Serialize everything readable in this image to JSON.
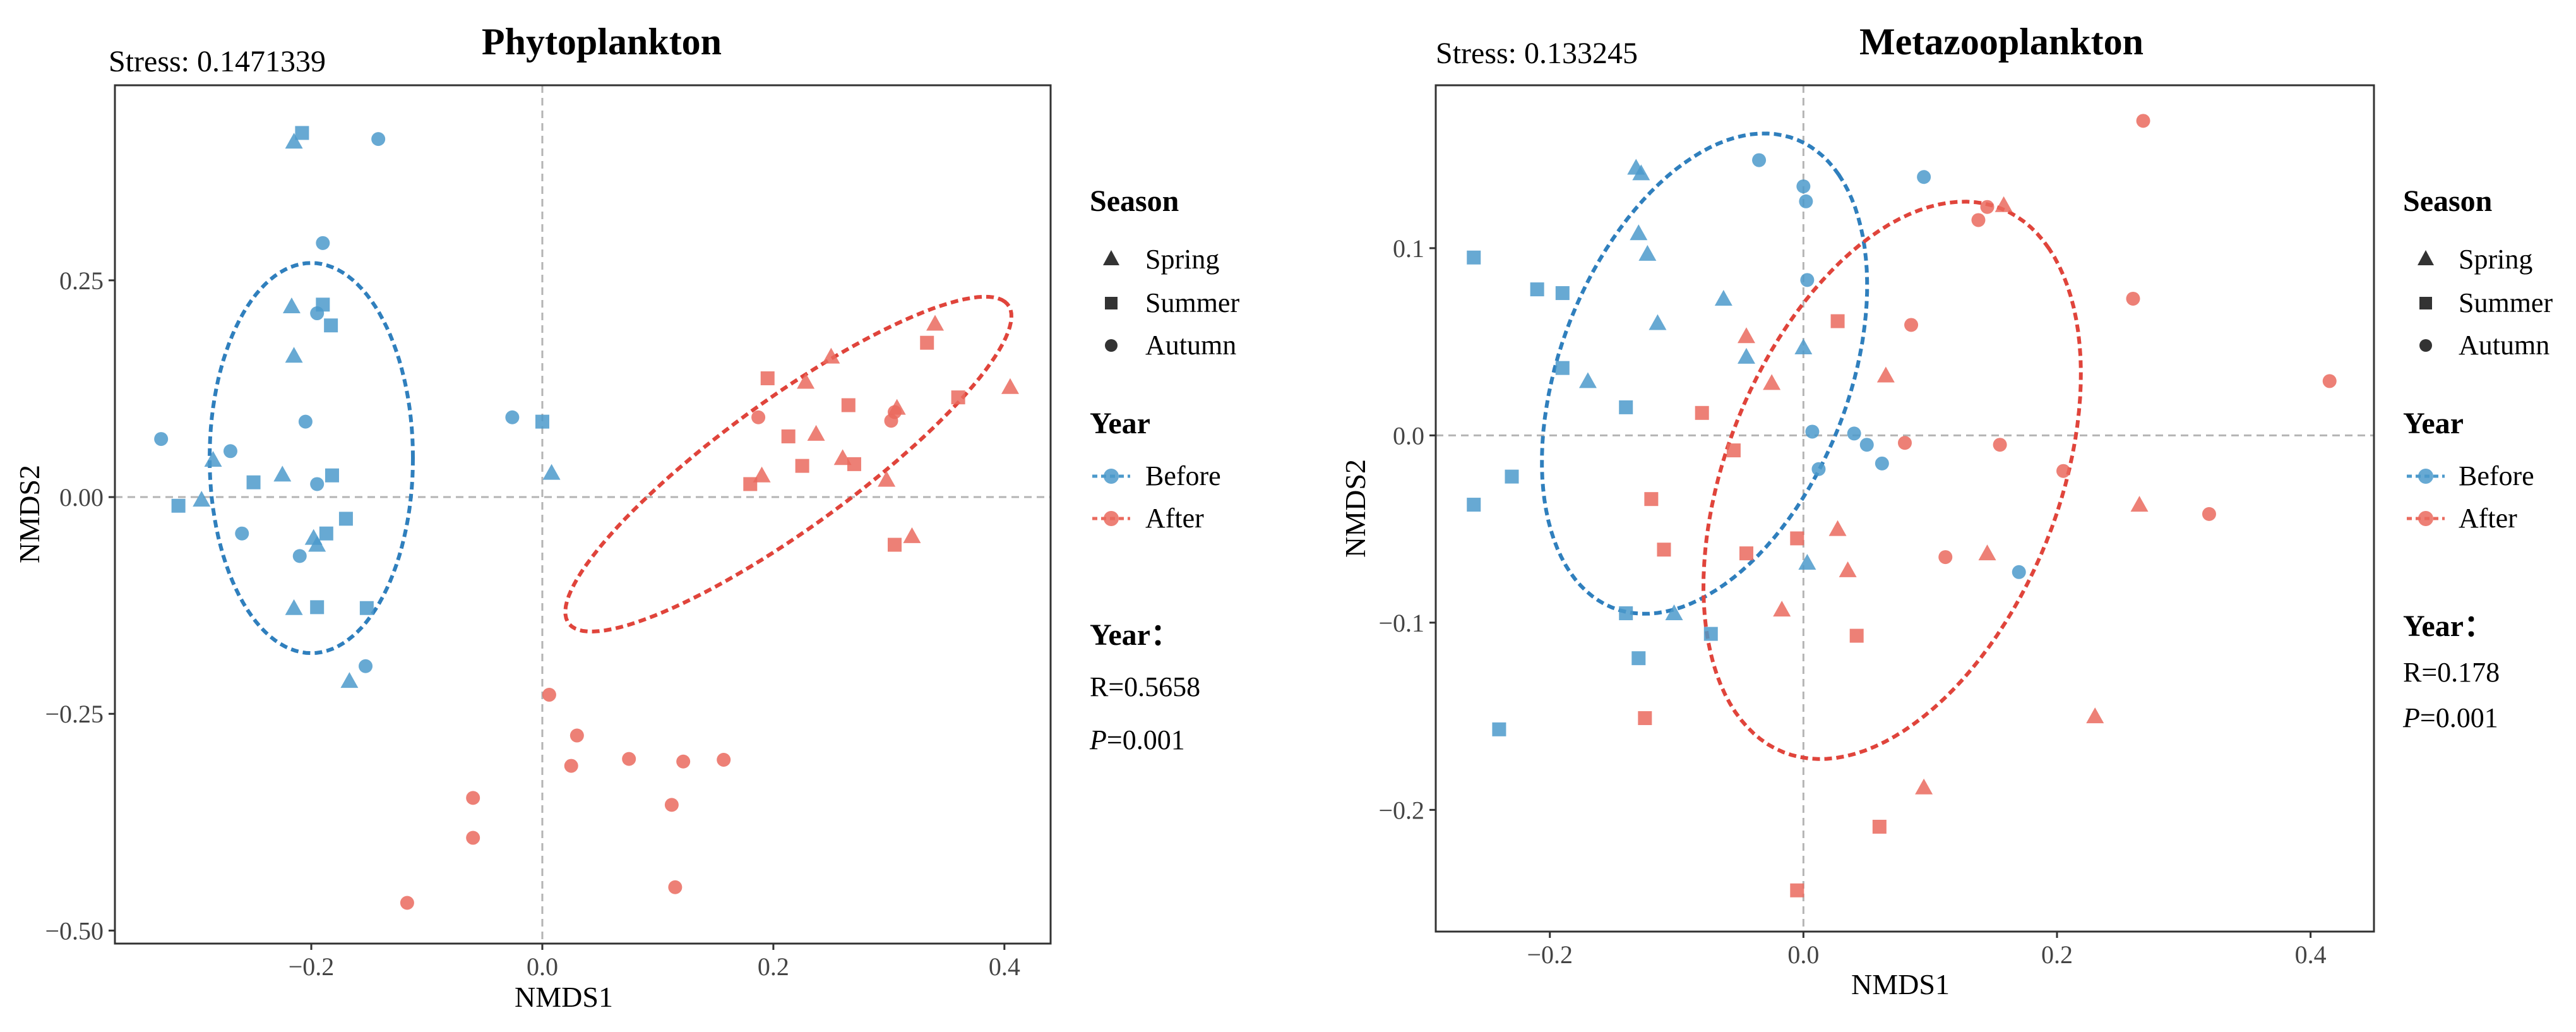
{
  "colors": {
    "before": "#4c9acb",
    "after": "#ea6a5e",
    "before_ellipse": "#2f7fbd",
    "after_ellipse": "#e0443b",
    "zero_line": "#b4b4b4"
  },
  "chart_data": [
    {
      "type": "scatter",
      "title": "Phytoplankton",
      "stress_text": "Stress: 0.1471339",
      "xlabel": "NMDS1",
      "ylabel": "NMDS2",
      "xlim": [
        -0.37,
        0.44
      ],
      "ylim": [
        -0.515,
        0.475
      ],
      "xticks": [
        -0.2,
        0.0,
        0.2,
        0.4
      ],
      "xtick_labels": [
        "−0.2",
        "0.0",
        "0.2",
        "0.4"
      ],
      "yticks": [
        -0.5,
        -0.25,
        0.0,
        0.25
      ],
      "ytick_labels": [
        "−0.50",
        "−0.25",
        "0.00",
        "0.25"
      ],
      "grid": false,
      "legend_position": "right",
      "ellipses": [
        {
          "group": "Before",
          "cx": -0.2,
          "cy": 0.045,
          "rx": 0.088,
          "ry": 0.225,
          "angle": 0
        },
        {
          "group": "After",
          "cx": 0.213,
          "cy": 0.038,
          "rx": 0.265,
          "ry": 0.066,
          "angle": 45
        }
      ],
      "points": [
        {
          "x": -0.208,
          "y": 0.42,
          "season": "Summer",
          "year": "Before"
        },
        {
          "x": -0.215,
          "y": 0.41,
          "season": "Spring",
          "year": "Before"
        },
        {
          "x": -0.142,
          "y": 0.413,
          "season": "Autumn",
          "year": "Before"
        },
        {
          "x": -0.19,
          "y": 0.293,
          "season": "Autumn",
          "year": "Before"
        },
        {
          "x": -0.19,
          "y": 0.222,
          "season": "Summer",
          "year": "Before"
        },
        {
          "x": -0.217,
          "y": 0.22,
          "season": "Spring",
          "year": "Before"
        },
        {
          "x": -0.195,
          "y": 0.212,
          "season": "Autumn",
          "year": "Before"
        },
        {
          "x": -0.183,
          "y": 0.198,
          "season": "Summer",
          "year": "Before"
        },
        {
          "x": -0.215,
          "y": 0.163,
          "season": "Spring",
          "year": "Before"
        },
        {
          "x": -0.205,
          "y": 0.087,
          "season": "Autumn",
          "year": "Before"
        },
        {
          "x": -0.33,
          "y": 0.067,
          "season": "Autumn",
          "year": "Before"
        },
        {
          "x": -0.27,
          "y": 0.053,
          "season": "Autumn",
          "year": "Before"
        },
        {
          "x": -0.285,
          "y": 0.043,
          "season": "Spring",
          "year": "Before"
        },
        {
          "x": -0.225,
          "y": 0.026,
          "season": "Spring",
          "year": "Before"
        },
        {
          "x": -0.182,
          "y": 0.025,
          "season": "Summer",
          "year": "Before"
        },
        {
          "x": -0.25,
          "y": 0.017,
          "season": "Summer",
          "year": "Before"
        },
        {
          "x": -0.195,
          "y": 0.015,
          "season": "Autumn",
          "year": "Before"
        },
        {
          "x": -0.295,
          "y": -0.003,
          "season": "Spring",
          "year": "Before"
        },
        {
          "x": -0.315,
          "y": -0.01,
          "season": "Summer",
          "year": "Before"
        },
        {
          "x": -0.17,
          "y": -0.025,
          "season": "Summer",
          "year": "Before"
        },
        {
          "x": -0.26,
          "y": -0.042,
          "season": "Autumn",
          "year": "Before"
        },
        {
          "x": -0.187,
          "y": -0.042,
          "season": "Summer",
          "year": "Before"
        },
        {
          "x": -0.198,
          "y": -0.047,
          "season": "Spring",
          "year": "Before"
        },
        {
          "x": -0.195,
          "y": -0.055,
          "season": "Spring",
          "year": "Before"
        },
        {
          "x": -0.21,
          "y": -0.068,
          "season": "Autumn",
          "year": "Before"
        },
        {
          "x": -0.215,
          "y": -0.128,
          "season": "Spring",
          "year": "Before"
        },
        {
          "x": -0.195,
          "y": -0.127,
          "season": "Summer",
          "year": "Before"
        },
        {
          "x": -0.152,
          "y": -0.128,
          "season": "Summer",
          "year": "Before"
        },
        {
          "x": -0.153,
          "y": -0.195,
          "season": "Autumn",
          "year": "Before"
        },
        {
          "x": -0.167,
          "y": -0.212,
          "season": "Spring",
          "year": "Before"
        },
        {
          "x": -0.026,
          "y": 0.092,
          "season": "Autumn",
          "year": "Before"
        },
        {
          "x": 0.0,
          "y": 0.087,
          "season": "Summer",
          "year": "Before"
        },
        {
          "x": 0.008,
          "y": 0.028,
          "season": "Spring",
          "year": "Before"
        },
        {
          "x": 0.34,
          "y": 0.2,
          "season": "Spring",
          "year": "After"
        },
        {
          "x": 0.333,
          "y": 0.178,
          "season": "Summer",
          "year": "After"
        },
        {
          "x": 0.25,
          "y": 0.162,
          "season": "Spring",
          "year": "After"
        },
        {
          "x": 0.195,
          "y": 0.137,
          "season": "Summer",
          "year": "After"
        },
        {
          "x": 0.228,
          "y": 0.133,
          "season": "Spring",
          "year": "After"
        },
        {
          "x": 0.405,
          "y": 0.127,
          "season": "Spring",
          "year": "After"
        },
        {
          "x": 0.36,
          "y": 0.115,
          "season": "Summer",
          "year": "After"
        },
        {
          "x": 0.265,
          "y": 0.106,
          "season": "Summer",
          "year": "After"
        },
        {
          "x": 0.307,
          "y": 0.103,
          "season": "Spring",
          "year": "After"
        },
        {
          "x": 0.305,
          "y": 0.098,
          "season": "Autumn",
          "year": "After"
        },
        {
          "x": 0.187,
          "y": 0.092,
          "season": "Autumn",
          "year": "After"
        },
        {
          "x": 0.302,
          "y": 0.088,
          "season": "Autumn",
          "year": "After"
        },
        {
          "x": 0.237,
          "y": 0.073,
          "season": "Spring",
          "year": "After"
        },
        {
          "x": 0.213,
          "y": 0.07,
          "season": "Summer",
          "year": "After"
        },
        {
          "x": 0.26,
          "y": 0.045,
          "season": "Spring",
          "year": "After"
        },
        {
          "x": 0.27,
          "y": 0.038,
          "season": "Summer",
          "year": "After"
        },
        {
          "x": 0.225,
          "y": 0.036,
          "season": "Summer",
          "year": "After"
        },
        {
          "x": 0.19,
          "y": 0.025,
          "season": "Spring",
          "year": "After"
        },
        {
          "x": 0.298,
          "y": 0.02,
          "season": "Spring",
          "year": "After"
        },
        {
          "x": 0.18,
          "y": 0.015,
          "season": "Summer",
          "year": "After"
        },
        {
          "x": 0.32,
          "y": -0.045,
          "season": "Spring",
          "year": "After"
        },
        {
          "x": 0.305,
          "y": -0.055,
          "season": "Summer",
          "year": "After"
        },
        {
          "x": 0.006,
          "y": -0.228,
          "season": "Autumn",
          "year": "After"
        },
        {
          "x": 0.03,
          "y": -0.275,
          "season": "Autumn",
          "year": "After"
        },
        {
          "x": 0.075,
          "y": -0.302,
          "season": "Autumn",
          "year": "After"
        },
        {
          "x": 0.122,
          "y": -0.305,
          "season": "Autumn",
          "year": "After"
        },
        {
          "x": 0.157,
          "y": -0.303,
          "season": "Autumn",
          "year": "After"
        },
        {
          "x": 0.025,
          "y": -0.31,
          "season": "Autumn",
          "year": "After"
        },
        {
          "x": -0.06,
          "y": -0.347,
          "season": "Autumn",
          "year": "After"
        },
        {
          "x": 0.112,
          "y": -0.355,
          "season": "Autumn",
          "year": "After"
        },
        {
          "x": -0.06,
          "y": -0.393,
          "season": "Autumn",
          "year": "After"
        },
        {
          "x": 0.115,
          "y": -0.45,
          "season": "Autumn",
          "year": "After"
        },
        {
          "x": -0.117,
          "y": -0.468,
          "season": "Autumn",
          "year": "After"
        }
      ]
    },
    {
      "type": "scatter",
      "title": "Metazooplankton",
      "stress_text": "Stress: 0.133245",
      "xlabel": "NMDS1",
      "ylabel": "NMDS2",
      "xlim": [
        -0.29,
        0.45
      ],
      "ylim": [
        -0.265,
        0.187
      ],
      "xticks": [
        -0.2,
        0.0,
        0.2,
        0.4
      ],
      "xtick_labels": [
        "−0.2",
        "0.0",
        "0.2",
        "0.4"
      ],
      "yticks": [
        -0.2,
        -0.1,
        0.0,
        0.1
      ],
      "ytick_labels": [
        "−0.2",
        "−0.1",
        "0.0",
        "0.1"
      ],
      "grid": false,
      "legend_position": "right",
      "ellipses": [
        {
          "group": "Before",
          "cx": -0.078,
          "cy": 0.033,
          "rx": 0.15,
          "ry": 0.102,
          "angle": 45
        },
        {
          "group": "After",
          "cx": 0.07,
          "cy": -0.024,
          "rx": 0.175,
          "ry": 0.117,
          "angle": 45
        }
      ],
      "points": [
        {
          "x": -0.132,
          "y": 0.143,
          "season": "Spring",
          "year": "Before"
        },
        {
          "x": -0.128,
          "y": 0.14,
          "season": "Spring",
          "year": "Before"
        },
        {
          "x": -0.035,
          "y": 0.147,
          "season": "Autumn",
          "year": "Before"
        },
        {
          "x": 0.095,
          "y": 0.138,
          "season": "Autumn",
          "year": "Before"
        },
        {
          "x": 0.0,
          "y": 0.133,
          "season": "Autumn",
          "year": "Before"
        },
        {
          "x": 0.002,
          "y": 0.125,
          "season": "Autumn",
          "year": "Before"
        },
        {
          "x": -0.13,
          "y": 0.108,
          "season": "Spring",
          "year": "Before"
        },
        {
          "x": -0.123,
          "y": 0.097,
          "season": "Spring",
          "year": "Before"
        },
        {
          "x": -0.26,
          "y": 0.095,
          "season": "Summer",
          "year": "Before"
        },
        {
          "x": 0.003,
          "y": 0.083,
          "season": "Autumn",
          "year": "Before"
        },
        {
          "x": -0.21,
          "y": 0.078,
          "season": "Summer",
          "year": "Before"
        },
        {
          "x": -0.19,
          "y": 0.076,
          "season": "Summer",
          "year": "Before"
        },
        {
          "x": -0.063,
          "y": 0.073,
          "season": "Spring",
          "year": "Before"
        },
        {
          "x": -0.115,
          "y": 0.06,
          "season": "Spring",
          "year": "Before"
        },
        {
          "x": 0.0,
          "y": 0.047,
          "season": "Spring",
          "year": "Before"
        },
        {
          "x": -0.045,
          "y": 0.042,
          "season": "Spring",
          "year": "Before"
        },
        {
          "x": -0.19,
          "y": 0.036,
          "season": "Summer",
          "year": "Before"
        },
        {
          "x": -0.17,
          "y": 0.029,
          "season": "Spring",
          "year": "Before"
        },
        {
          "x": -0.14,
          "y": 0.015,
          "season": "Summer",
          "year": "Before"
        },
        {
          "x": 0.007,
          "y": 0.002,
          "season": "Autumn",
          "year": "Before"
        },
        {
          "x": 0.04,
          "y": 0.001,
          "season": "Autumn",
          "year": "Before"
        },
        {
          "x": 0.05,
          "y": -0.005,
          "season": "Autumn",
          "year": "Before"
        },
        {
          "x": 0.012,
          "y": -0.018,
          "season": "Autumn",
          "year": "Before"
        },
        {
          "x": 0.062,
          "y": -0.015,
          "season": "Autumn",
          "year": "Before"
        },
        {
          "x": -0.23,
          "y": -0.022,
          "season": "Summer",
          "year": "Before"
        },
        {
          "x": -0.26,
          "y": -0.037,
          "season": "Summer",
          "year": "Before"
        },
        {
          "x": 0.003,
          "y": -0.068,
          "season": "Spring",
          "year": "Before"
        },
        {
          "x": 0.17,
          "y": -0.073,
          "season": "Autumn",
          "year": "Before"
        },
        {
          "x": -0.14,
          "y": -0.095,
          "season": "Summer",
          "year": "Before"
        },
        {
          "x": -0.102,
          "y": -0.095,
          "season": "Spring",
          "year": "Before"
        },
        {
          "x": -0.073,
          "y": -0.106,
          "season": "Summer",
          "year": "Before"
        },
        {
          "x": -0.13,
          "y": -0.119,
          "season": "Summer",
          "year": "Before"
        },
        {
          "x": -0.24,
          "y": -0.157,
          "season": "Summer",
          "year": "Before"
        },
        {
          "x": 0.268,
          "y": 0.168,
          "season": "Autumn",
          "year": "After"
        },
        {
          "x": 0.158,
          "y": 0.123,
          "season": "Spring",
          "year": "After"
        },
        {
          "x": 0.145,
          "y": 0.122,
          "season": "Autumn",
          "year": "After"
        },
        {
          "x": 0.138,
          "y": 0.115,
          "season": "Autumn",
          "year": "After"
        },
        {
          "x": 0.26,
          "y": 0.073,
          "season": "Autumn",
          "year": "After"
        },
        {
          "x": 0.027,
          "y": 0.061,
          "season": "Summer",
          "year": "After"
        },
        {
          "x": 0.085,
          "y": 0.059,
          "season": "Autumn",
          "year": "After"
        },
        {
          "x": -0.045,
          "y": 0.053,
          "season": "Spring",
          "year": "After"
        },
        {
          "x": 0.065,
          "y": 0.032,
          "season": "Spring",
          "year": "After"
        },
        {
          "x": 0.415,
          "y": 0.029,
          "season": "Autumn",
          "year": "After"
        },
        {
          "x": -0.025,
          "y": 0.028,
          "season": "Spring",
          "year": "After"
        },
        {
          "x": -0.08,
          "y": 0.012,
          "season": "Summer",
          "year": "After"
        },
        {
          "x": 0.08,
          "y": -0.004,
          "season": "Autumn",
          "year": "After"
        },
        {
          "x": 0.155,
          "y": -0.005,
          "season": "Autumn",
          "year": "After"
        },
        {
          "x": -0.055,
          "y": -0.008,
          "season": "Summer",
          "year": "After"
        },
        {
          "x": 0.205,
          "y": -0.019,
          "season": "Autumn",
          "year": "After"
        },
        {
          "x": -0.12,
          "y": -0.034,
          "season": "Summer",
          "year": "After"
        },
        {
          "x": 0.265,
          "y": -0.037,
          "season": "Spring",
          "year": "After"
        },
        {
          "x": 0.32,
          "y": -0.042,
          "season": "Autumn",
          "year": "After"
        },
        {
          "x": 0.027,
          "y": -0.05,
          "season": "Spring",
          "year": "After"
        },
        {
          "x": -0.005,
          "y": -0.055,
          "season": "Summer",
          "year": "After"
        },
        {
          "x": -0.11,
          "y": -0.061,
          "season": "Summer",
          "year": "After"
        },
        {
          "x": -0.045,
          "y": -0.063,
          "season": "Summer",
          "year": "After"
        },
        {
          "x": 0.145,
          "y": -0.063,
          "season": "Spring",
          "year": "After"
        },
        {
          "x": 0.112,
          "y": -0.065,
          "season": "Autumn",
          "year": "After"
        },
        {
          "x": 0.035,
          "y": -0.072,
          "season": "Spring",
          "year": "After"
        },
        {
          "x": -0.017,
          "y": -0.093,
          "season": "Spring",
          "year": "After"
        },
        {
          "x": 0.042,
          "y": -0.107,
          "season": "Summer",
          "year": "After"
        },
        {
          "x": -0.125,
          "y": -0.151,
          "season": "Summer",
          "year": "After"
        },
        {
          "x": 0.23,
          "y": -0.15,
          "season": "Spring",
          "year": "After"
        },
        {
          "x": 0.095,
          "y": -0.188,
          "season": "Spring",
          "year": "After"
        },
        {
          "x": 0.06,
          "y": -0.209,
          "season": "Summer",
          "year": "After"
        },
        {
          "x": -0.005,
          "y": -0.243,
          "season": "Summer",
          "year": "After"
        }
      ]
    }
  ],
  "legends": [
    {
      "season_title": "Season",
      "season_items": [
        "Spring",
        "Summer",
        "Autumn"
      ],
      "year_title": "Year",
      "year_items": [
        "Before",
        "After"
      ],
      "stat_title": "Year：",
      "stat_r": "R=0.5658",
      "stat_p_letter": "P",
      "stat_p_value": "=0.001"
    },
    {
      "season_title": "Season",
      "season_items": [
        "Spring",
        "Summer",
        "Autumn"
      ],
      "year_title": "Year",
      "year_items": [
        "Before",
        "After"
      ],
      "stat_title": "Year：",
      "stat_r": "R=0.178",
      "stat_p_letter": "P",
      "stat_p_value": "=0.001"
    }
  ]
}
